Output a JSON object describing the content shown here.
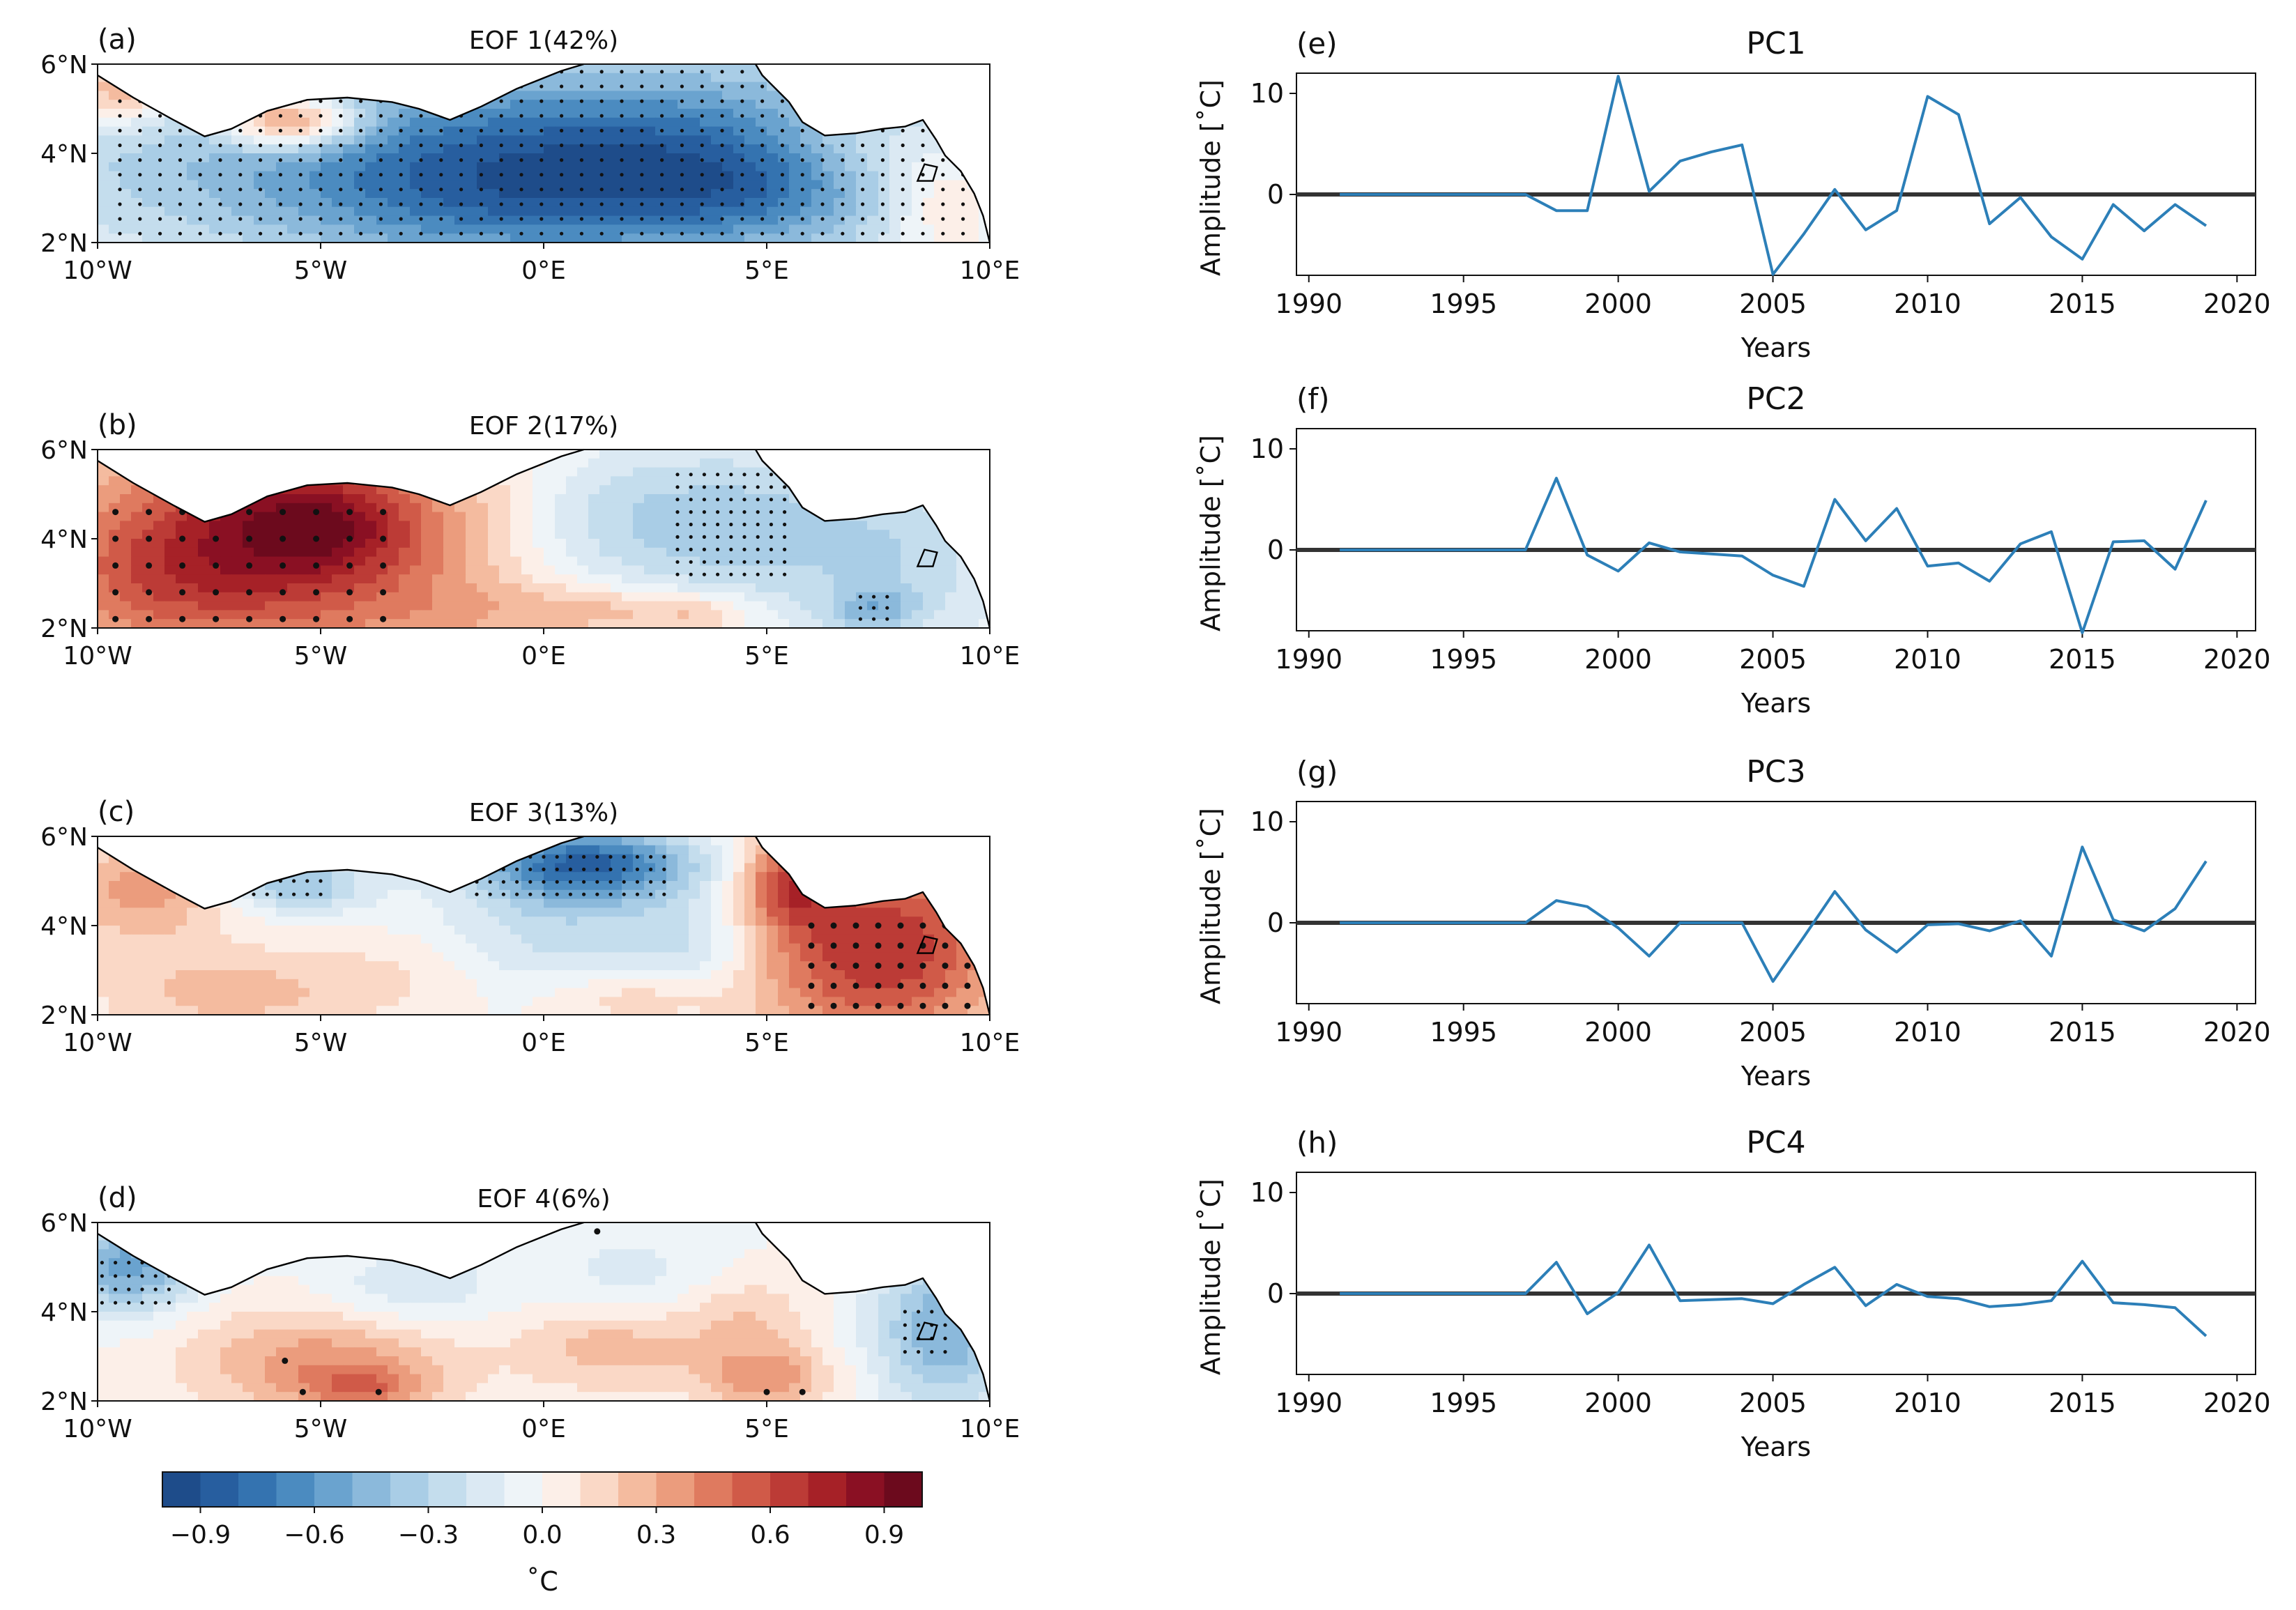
{
  "chart_data": [
    {
      "id": "a",
      "type": "heatmap",
      "panel_label": "(a)",
      "title": "EOF 1(42%)",
      "xlabel": "",
      "ylabel": "",
      "x_ticks": [
        "10°W",
        "5°W",
        "0°E",
        "5°E",
        "10°E"
      ],
      "y_ticks": [
        "6°N",
        "4°N",
        "2°N"
      ],
      "xlim": [
        -10,
        10
      ],
      "ylim": [
        2,
        6
      ],
      "pattern": "strong negative loading (blue, about -0.6 to -0.9) across almost the entire domain; weak positive near 6°W-5°W coast; stippling over most of domain",
      "blobs": [
        {
          "lon": 0,
          "lat": 4,
          "rlon": 12,
          "rlat": 2.5,
          "v": -0.55
        },
        {
          "lon": 2.5,
          "lat": 3.5,
          "rlon": 5,
          "rlat": 2,
          "v": -0.3
        },
        {
          "lon": -2,
          "lat": 3,
          "rlon": 5,
          "rlat": 1.6,
          "v": -0.25
        },
        {
          "lon": 4.5,
          "lat": 3.2,
          "rlon": 2.5,
          "rlat": 1,
          "v": -0.15
        },
        {
          "lon": -5.7,
          "lat": 4.7,
          "rlon": 1.5,
          "rlat": 0.6,
          "v": 0.75
        },
        {
          "lon": -9.5,
          "lat": 5.4,
          "rlon": 1.3,
          "rlat": 0.8,
          "v": 0.45
        },
        {
          "lon": 9,
          "lat": 3,
          "rlon": 1.5,
          "rlat": 1.4,
          "v": 0.35
        },
        {
          "lon": 7,
          "lat": 4.2,
          "rlon": 2,
          "rlat": 1,
          "v": 0.2
        }
      ],
      "stipple": [
        {
          "lon0": -9.5,
          "lon1": 9.5,
          "lat0": 2.2,
          "lat1": 5.9,
          "step_lon": 0.45,
          "step_lat": 0.33,
          "r": 0.0018
        }
      ]
    },
    {
      "id": "b",
      "type": "heatmap",
      "panel_label": "(b)",
      "title": "EOF 2(17%)",
      "xlabel": "",
      "ylabel": "",
      "x_ticks": [
        "10°W",
        "5°W",
        "0°E",
        "5°E",
        "10°E"
      ],
      "y_ticks": [
        "6°N",
        "4°N",
        "2°N"
      ],
      "xlim": [
        -10,
        10
      ],
      "ylim": [
        2,
        6
      ],
      "pattern": "strong positive (red) west of 2°W; weak negative (light blue) east of 0°E; stippling in west and around 3-5°E",
      "blobs": [
        {
          "lon": -6,
          "lat": 4,
          "rlon": 4.5,
          "rlat": 2.6,
          "v": 0.75
        },
        {
          "lon": -5,
          "lat": 4.3,
          "rlon": 2,
          "rlat": 1,
          "v": 0.3
        },
        {
          "lon": -9,
          "lat": 3,
          "rlon": 2.5,
          "rlat": 1.5,
          "v": 0.2
        },
        {
          "lon": -1,
          "lat": 2.3,
          "rlon": 2.5,
          "rlat": 0.8,
          "v": 0.15
        },
        {
          "lon": 1.5,
          "lat": 2.4,
          "rlon": 1.5,
          "rlat": 0.5,
          "v": 0.2
        },
        {
          "lon": 3.5,
          "lat": 2.3,
          "rlon": 1.2,
          "rlat": 0.5,
          "v": 0.25
        },
        {
          "lon": 4,
          "lat": 4.3,
          "rlon": 3,
          "rlat": 1.8,
          "v": -0.35
        },
        {
          "lon": 8,
          "lat": 3.5,
          "rlon": 2.5,
          "rlat": 2,
          "v": -0.25
        },
        {
          "lon": 7.4,
          "lat": 2.4,
          "rlon": 1,
          "rlat": 0.5,
          "v": -0.3
        },
        {
          "lon": 1,
          "lat": 4.5,
          "rlon": 2,
          "rlat": 1.5,
          "v": -0.15
        }
      ],
      "stipple": [
        {
          "lon0": -9.6,
          "lon1": -3,
          "lat0": 2.2,
          "lat1": 4.9,
          "step_lon": 0.75,
          "step_lat": 0.6,
          "r": 0.0028
        },
        {
          "lon0": 3,
          "lon1": 5.5,
          "lat0": 3.2,
          "lat1": 5.5,
          "step_lon": 0.3,
          "step_lat": 0.28,
          "r": 0.0018
        },
        {
          "lon0": 7.1,
          "lon1": 7.9,
          "lat0": 2.2,
          "lat1": 2.8,
          "step_lon": 0.3,
          "step_lat": 0.25,
          "r": 0.0018
        }
      ]
    },
    {
      "id": "c",
      "type": "heatmap",
      "panel_label": "(c)",
      "title": "EOF 3(13%)",
      "xlabel": "",
      "ylabel": "",
      "x_ticks": [
        "10°W",
        "5°W",
        "0°E",
        "5°E",
        "10°E"
      ],
      "y_ticks": [
        "6°N",
        "4°N",
        "2°N"
      ],
      "xlim": [
        -10,
        10
      ],
      "ylim": [
        2,
        6
      ],
      "pattern": "negative (blue) along the Ghana/Togo coast 2°W-3°E; positive (red) east of 5°E in the Bight of Biafra; weak elsewhere",
      "blobs": [
        {
          "lon": 1,
          "lat": 5.4,
          "rlon": 2.5,
          "rlat": 0.8,
          "v": -0.75
        },
        {
          "lon": -5.5,
          "lat": 4.9,
          "rlon": 1.5,
          "rlat": 0.6,
          "v": -0.4
        },
        {
          "lon": 0.5,
          "lat": 4,
          "rlon": 3,
          "rlat": 1.5,
          "v": -0.25
        },
        {
          "lon": 3.5,
          "lat": 3.5,
          "rlon": 1.5,
          "rlat": 1.2,
          "v": -0.2
        },
        {
          "lon": 7.5,
          "lat": 3.5,
          "rlon": 3,
          "rlat": 2.3,
          "v": 0.7
        },
        {
          "lon": 5.5,
          "lat": 5,
          "rlon": 1,
          "rlat": 1,
          "v": 0.45
        },
        {
          "lon": -9,
          "lat": 4.8,
          "rlon": 1.8,
          "rlat": 1.2,
          "v": 0.35
        },
        {
          "lon": -7,
          "lat": 2.5,
          "rlon": 3,
          "rlat": 1,
          "v": 0.25
        },
        {
          "lon": -3,
          "lat": 3,
          "rlon": 2,
          "rlat": 1,
          "v": 0.1
        },
        {
          "lon": 2,
          "lat": 2.4,
          "rlon": 2,
          "rlat": 0.6,
          "v": 0.2
        }
      ],
      "stipple": [
        {
          "lon0": -1.5,
          "lon1": 2.8,
          "lat0": 4.7,
          "lat1": 5.8,
          "step_lon": 0.3,
          "step_lat": 0.28,
          "r": 0.0018
        },
        {
          "lon0": -6.5,
          "lon1": -5,
          "lat0": 4.7,
          "lat1": 5.0,
          "step_lon": 0.3,
          "step_lat": 0.3,
          "r": 0.0018
        },
        {
          "lon0": 6,
          "lon1": 9.6,
          "lat0": 2.2,
          "lat1": 4.3,
          "step_lon": 0.5,
          "step_lat": 0.45,
          "r": 0.0028
        }
      ]
    },
    {
      "id": "d",
      "type": "heatmap",
      "panel_label": "(d)",
      "title": "EOF 4(6%)",
      "xlabel": "",
      "ylabel": "",
      "x_ticks": [
        "10°W",
        "5°W",
        "0°E",
        "5°E",
        "10°E"
      ],
      "y_ticks": [
        "6°N",
        "4°N",
        "2°N"
      ],
      "xlim": [
        -10,
        10
      ],
      "ylim": [
        2,
        6
      ],
      "pattern": "weak positive (light red) over most of the south; negative (blue) near 10°W and east of 8°E; sparse stippling",
      "blobs": [
        {
          "lon": -9.3,
          "lat": 5,
          "rlon": 1.5,
          "rlat": 1,
          "v": -0.55
        },
        {
          "lon": 9,
          "lat": 3.6,
          "rlon": 1.6,
          "rlat": 1.8,
          "v": -0.5
        },
        {
          "lon": -3,
          "lat": 4.5,
          "rlon": 2,
          "rlat": 0.9,
          "v": -0.2
        },
        {
          "lon": 2,
          "lat": 4.8,
          "rlon": 2,
          "rlat": 1,
          "v": -0.15
        },
        {
          "lon": -5,
          "lat": 2.9,
          "rlon": 3,
          "rlat": 1.2,
          "v": 0.35
        },
        {
          "lon": -4,
          "lat": 2.3,
          "rlon": 1.5,
          "rlat": 0.5,
          "v": 0.3
        },
        {
          "lon": 1.5,
          "lat": 3.2,
          "rlon": 2,
          "rlat": 1,
          "v": 0.25
        },
        {
          "lon": 5,
          "lat": 2.5,
          "rlon": 1.5,
          "rlat": 0.7,
          "v": 0.35
        },
        {
          "lon": 4.5,
          "lat": 3.8,
          "rlon": 1.5,
          "rlat": 1,
          "v": 0.2
        }
      ],
      "stipple": [
        {
          "lon0": -9.9,
          "lon1": -8.3,
          "lat0": 4.2,
          "lat1": 5.2,
          "step_lon": 0.3,
          "step_lat": 0.3,
          "r": 0.0018
        },
        {
          "lon0": 8.1,
          "lon1": 9.1,
          "lat0": 3.1,
          "lat1": 4.2,
          "step_lon": 0.3,
          "step_lat": 0.3,
          "r": 0.0018
        }
      ],
      "big_dots": [
        [
          -5.8,
          2.9
        ],
        [
          -5.4,
          2.2
        ],
        [
          -3.7,
          2.2
        ],
        [
          5,
          2.2
        ],
        [
          5.8,
          2.2
        ],
        [
          1.2,
          5.8
        ]
      ]
    },
    {
      "id": "colorbar",
      "type": "colorbar",
      "label": "˚C",
      "range": [
        -1.0,
        1.0
      ],
      "n_levels": 20,
      "tick_labels": [
        "−0.9",
        "−0.6",
        "−0.3",
        "0.0",
        "0.3",
        "0.6",
        "0.9"
      ],
      "tick_values": [
        -0.9,
        -0.6,
        -0.3,
        0.0,
        0.3,
        0.6,
        0.9
      ],
      "colors": [
        "#1e4c8a",
        "#275e9f",
        "#3473b0",
        "#4b8bc0",
        "#6aa3cf",
        "#8bb9db",
        "#a9cde6",
        "#c4dded",
        "#dbe9f3",
        "#eef4f8",
        "#fcefe8",
        "#fad8c6",
        "#f4bb9f",
        "#eb9c7d",
        "#df7a5f",
        "#d05a48",
        "#bc3b36",
        "#a62127",
        "#8a1023",
        "#6c0a1d"
      ]
    },
    {
      "id": "e",
      "type": "line",
      "panel_label": "(e)",
      "title": "PC1",
      "xlabel": "Years",
      "ylabel": "Amplitude [˚C]",
      "xlim": [
        1989.6,
        2020.6
      ],
      "ylim": [
        -8,
        12
      ],
      "x_ticks": [
        "1990",
        "1995",
        "2000",
        "2005",
        "2010",
        "2015",
        "2020"
      ],
      "y_ticks": [
        "10",
        "0"
      ],
      "x": [
        1991,
        1992,
        1993,
        1994,
        1995,
        1996,
        1997,
        1998,
        1999,
        2000,
        2001,
        2002,
        2003,
        2004,
        2005,
        2006,
        2007,
        2008,
        2009,
        2010,
        2011,
        2012,
        2013,
        2014,
        2015,
        2016,
        2017,
        2018,
        2019
      ],
      "values": [
        0,
        0,
        0,
        0,
        0,
        0,
        0,
        -1.6,
        -1.6,
        11.7,
        0.3,
        3.3,
        4.2,
        4.9,
        -7.9,
        -3.9,
        0.5,
        -3.5,
        -1.6,
        9.7,
        7.9,
        -2.9,
        -0.3,
        -4.2,
        -6.4,
        -1,
        -3.6,
        -1,
        -3.1
      ]
    },
    {
      "id": "f",
      "type": "line",
      "panel_label": "(f)",
      "title": "PC2",
      "xlabel": "Years",
      "ylabel": "Amplitude [˚C]",
      "xlim": [
        1989.6,
        2020.6
      ],
      "ylim": [
        -8,
        12
      ],
      "x_ticks": [
        "1990",
        "1995",
        "2000",
        "2005",
        "2010",
        "2015",
        "2020"
      ],
      "y_ticks": [
        "10",
        "0"
      ],
      "x": [
        1991,
        1992,
        1993,
        1994,
        1995,
        1996,
        1997,
        1998,
        1999,
        2000,
        2001,
        2002,
        2003,
        2004,
        2005,
        2006,
        2007,
        2008,
        2009,
        2010,
        2011,
        2012,
        2013,
        2014,
        2015,
        2016,
        2017,
        2018,
        2019
      ],
      "values": [
        0,
        0,
        0,
        0,
        0,
        0,
        0,
        7.1,
        -0.5,
        -2.1,
        0.7,
        -0.2,
        -0.4,
        -0.6,
        -2.5,
        -3.6,
        5,
        0.9,
        4.1,
        -1.6,
        -1.3,
        -3.1,
        0.6,
        1.8,
        -8.2,
        0.8,
        0.9,
        -1.9,
        4.9
      ]
    },
    {
      "id": "g",
      "type": "line",
      "panel_label": "(g)",
      "title": "PC3",
      "xlabel": "Years",
      "ylabel": "Amplitude [˚C]",
      "xlim": [
        1989.6,
        2020.6
      ],
      "ylim": [
        -8,
        12
      ],
      "x_ticks": [
        "1990",
        "1995",
        "2000",
        "2005",
        "2010",
        "2015",
        "2020"
      ],
      "y_ticks": [
        "10",
        "0"
      ],
      "x": [
        1991,
        1992,
        1993,
        1994,
        1995,
        1996,
        1997,
        1998,
        1999,
        2000,
        2001,
        2002,
        2003,
        2004,
        2005,
        2006,
        2007,
        2008,
        2009,
        2010,
        2011,
        2012,
        2013,
        2014,
        2015,
        2016,
        2017,
        2018,
        2019
      ],
      "values": [
        0,
        0,
        0,
        0,
        0,
        0,
        0,
        2.2,
        1.6,
        -0.5,
        -3.3,
        0,
        0,
        0,
        -5.8,
        -1.4,
        3.1,
        -0.7,
        -2.9,
        -0.2,
        -0.1,
        -0.8,
        0.2,
        -3.3,
        7.5,
        0.3,
        -0.8,
        1.4,
        6.1
      ]
    },
    {
      "id": "h",
      "type": "line",
      "panel_label": "(h)",
      "title": "PC4",
      "xlabel": "Years",
      "ylabel": "Amplitude [˚C]",
      "xlim": [
        1989.6,
        2020.6
      ],
      "ylim": [
        -8,
        12
      ],
      "x_ticks": [
        "1990",
        "1995",
        "2000",
        "2005",
        "2010",
        "2015",
        "2020"
      ],
      "y_ticks": [
        "10",
        "0"
      ],
      "x": [
        1991,
        1992,
        1993,
        1994,
        1995,
        1996,
        1997,
        1998,
        1999,
        2000,
        2001,
        2002,
        2003,
        2004,
        2005,
        2006,
        2007,
        2008,
        2009,
        2010,
        2011,
        2012,
        2013,
        2014,
        2015,
        2016,
        2017,
        2018,
        2019
      ],
      "values": [
        0,
        0,
        0,
        0,
        0,
        0,
        0,
        3.1,
        -2,
        0.1,
        4.8,
        -0.7,
        -0.6,
        -0.5,
        -1,
        0.9,
        2.6,
        -1.2,
        0.9,
        -0.3,
        -0.5,
        -1.3,
        -1.1,
        -0.7,
        3.2,
        -0.9,
        -1.1,
        -1.4,
        -4.2
      ]
    }
  ],
  "colors": {
    "line": "#2c7fb8",
    "zero_line": "#333333",
    "land": "#ffffff",
    "coast": "#000000"
  }
}
